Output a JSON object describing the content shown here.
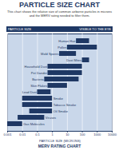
{
  "chart_data": {
    "type": "bar",
    "orientation": "horizontal",
    "title": "PARTICLE SIZE CHART",
    "subtitle": "This chart shows the relative size of common airborne particles in microns and the MERV rating needed to filter them.",
    "header_labels": [
      "PARTICLE SIZE",
      "VISIBLE TO THE EYE"
    ],
    "x_label": "PARTICLE SIZE (MICRONS)",
    "caption": "MERV RATING CHART",
    "categories": [
      "Human Hair",
      "Pollen",
      "Mold Spores",
      "Dust Mites",
      "Household Dust",
      "Pet Dander",
      "Bacteria",
      "Skin Flakes",
      "Lead Dust",
      "Smoke",
      "Tobacco Smoke",
      "Oil Smoke",
      "Viruses",
      "Gas Molecules"
    ],
    "values": [
      [
        40,
        300
      ],
      [
        10,
        1000
      ],
      [
        3,
        40
      ],
      [
        100,
        300
      ],
      [
        0.5,
        100
      ],
      [
        0.5,
        100
      ],
      [
        0.3,
        60
      ],
      [
        0.5,
        10
      ],
      [
        0.1,
        0.8
      ],
      [
        0.01,
        1
      ],
      [
        0.01,
        1
      ],
      [
        0.03,
        1
      ],
      [
        0.005,
        0.3
      ],
      [
        0.001,
        0.01
      ]
    ],
    "color": "#1f3864",
    "log": "x",
    "xlim": [
      0.001,
      10000
    ],
    "xticks": [
      0.001,
      0.01,
      0.1,
      1,
      10,
      100,
      1000,
      10000
    ],
    "grid": true
  }
}
